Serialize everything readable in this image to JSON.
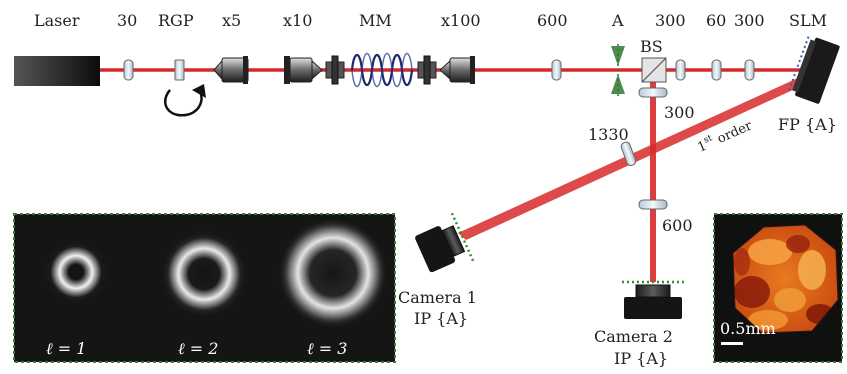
{
  "colors": {
    "beam": "#d62a2a",
    "beam_dark": "#b81818",
    "fiber": "#1c2a6e",
    "dots_green": "#2f8f2f",
    "inset_border": "#3a7a3a",
    "slm_dots": "#3b5db8"
  },
  "labels": {
    "laser": "Laser",
    "lens_30": "30",
    "rgp": "RGP",
    "obj_x5": "x5",
    "obj_x10": "x10",
    "fiber_mm": "MM",
    "obj_x100": "x100",
    "lens_600_top": "600",
    "aperture_a": "A",
    "lens_300_top": "300",
    "lens_60": "60",
    "lens_300_right": "300",
    "slm": "SLM",
    "bs": "BS",
    "lens_300_mid": "300",
    "lens_1330": "1330",
    "first_order_prefix": "1",
    "first_order_sup": "st",
    "first_order_suffix": "order",
    "fp": "FP {A}",
    "lens_600_bottom": "600",
    "camera1_name": "Camera 1",
    "camera1_plane": "IP {A}",
    "camera2_name": "Camera 2",
    "camera2_plane": "IP {A}",
    "scale_bar": "0.5mm"
  },
  "modes": [
    {
      "label": "ℓ = 1"
    },
    {
      "label": "ℓ = 2"
    },
    {
      "label": "ℓ = 3"
    }
  ],
  "icons": {
    "rotation": "curved-arrow-icon"
  }
}
